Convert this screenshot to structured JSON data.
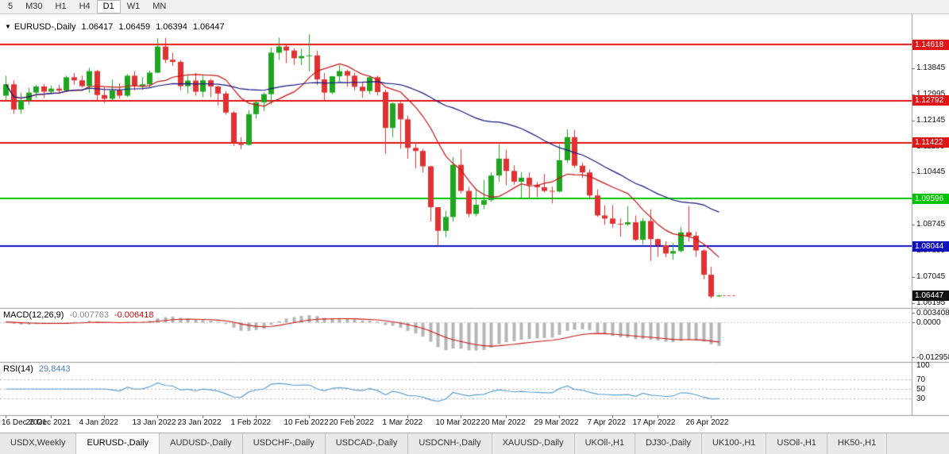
{
  "toolbar": {
    "timeframes": [
      "5",
      "M30",
      "H1",
      "H4",
      "D1",
      "W1",
      "MN"
    ],
    "active": "D1"
  },
  "chart_header": {
    "collapse_icon": "▼",
    "title": "EURUSD-,Daily",
    "open": "1.06417",
    "high": "1.06459",
    "low": "1.06394",
    "close": "1.06447"
  },
  "colors": {
    "bull": "#1fa51f",
    "bear": "#e03232",
    "ma_fast": "#c81414",
    "ma_slow": "#161680",
    "hist": "#b5b5b5",
    "macd_signal": "#c81414",
    "rsi_line": "#5f9fd0",
    "separator": "#9c9c9c",
    "last_dash": "#e03232"
  },
  "chart_data": {
    "type": "candlestick",
    "symbol": "EURUSD-",
    "timeframe": "Daily",
    "price_range": {
      "min": 1.0609,
      "max": 1.1529
    },
    "candles": [
      [
        1.1295,
        1.136,
        1.128,
        1.1332
      ],
      [
        1.1332,
        1.1345,
        1.1236,
        1.125
      ],
      [
        1.125,
        1.1305,
        1.1235,
        1.128
      ],
      [
        1.128,
        1.132,
        1.1265,
        1.1305
      ],
      [
        1.1305,
        1.133,
        1.1288,
        1.1325
      ],
      [
        1.1325,
        1.1333,
        1.1287,
        1.1308
      ],
      [
        1.1308,
        1.1328,
        1.13,
        1.1318
      ],
      [
        1.1318,
        1.1331,
        1.1305,
        1.1312
      ],
      [
        1.1312,
        1.136,
        1.131,
        1.1355
      ],
      [
        1.1355,
        1.1369,
        1.133,
        1.1345
      ],
      [
        1.1345,
        1.136,
        1.1321,
        1.1326
      ],
      [
        1.1326,
        1.1386,
        1.1304,
        1.1375
      ],
      [
        1.1375,
        1.1379,
        1.1279,
        1.1297
      ],
      [
        1.1297,
        1.1323,
        1.1272,
        1.1285
      ],
      [
        1.1285,
        1.1347,
        1.128,
        1.1312
      ],
      [
        1.1312,
        1.1335,
        1.1285,
        1.1295
      ],
      [
        1.1295,
        1.1365,
        1.129,
        1.136
      ],
      [
        1.136,
        1.1375,
        1.1313,
        1.1327
      ],
      [
        1.1327,
        1.1355,
        1.1314,
        1.1332
      ],
      [
        1.1332,
        1.1377,
        1.132,
        1.137
      ],
      [
        1.137,
        1.1482,
        1.1368,
        1.1455
      ],
      [
        1.1455,
        1.1483,
        1.1401,
        1.1412
      ],
      [
        1.1412,
        1.1435,
        1.1392,
        1.1405
      ],
      [
        1.1405,
        1.1411,
        1.1313,
        1.1326
      ],
      [
        1.1326,
        1.136,
        1.1302,
        1.1344
      ],
      [
        1.1344,
        1.1369,
        1.1295,
        1.1308
      ],
      [
        1.1308,
        1.136,
        1.129,
        1.1345
      ],
      [
        1.1345,
        1.1349,
        1.129,
        1.1325
      ],
      [
        1.1325,
        1.1327,
        1.1263,
        1.1302
      ],
      [
        1.1302,
        1.131,
        1.1233,
        1.124
      ],
      [
        1.124,
        1.1245,
        1.1131,
        1.1144
      ],
      [
        1.1144,
        1.116,
        1.1121,
        1.1135
      ],
      [
        1.1135,
        1.1248,
        1.1133,
        1.1235
      ],
      [
        1.1235,
        1.1279,
        1.122,
        1.1273
      ],
      [
        1.1273,
        1.1305,
        1.1245,
        1.13
      ],
      [
        1.13,
        1.1452,
        1.1267,
        1.1435
      ],
      [
        1.1435,
        1.1484,
        1.1411,
        1.1455
      ],
      [
        1.1455,
        1.146,
        1.1401,
        1.1442
      ],
      [
        1.1442,
        1.1449,
        1.1396,
        1.1417
      ],
      [
        1.1417,
        1.1448,
        1.1395,
        1.1424
      ],
      [
        1.1424,
        1.1495,
        1.1375,
        1.1426
      ],
      [
        1.1426,
        1.1442,
        1.133,
        1.1348
      ],
      [
        1.1348,
        1.1369,
        1.128,
        1.1305
      ],
      [
        1.1305,
        1.1359,
        1.13,
        1.1358
      ],
      [
        1.1358,
        1.1395,
        1.134,
        1.1375
      ],
      [
        1.1375,
        1.138,
        1.1324,
        1.136
      ],
      [
        1.136,
        1.1369,
        1.1312,
        1.1324
      ],
      [
        1.1324,
        1.134,
        1.1288,
        1.131
      ],
      [
        1.131,
        1.136,
        1.13,
        1.1355
      ],
      [
        1.1355,
        1.136,
        1.1295,
        1.1307
      ],
      [
        1.1307,
        1.1315,
        1.1106,
        1.119
      ],
      [
        1.119,
        1.1273,
        1.116,
        1.127
      ],
      [
        1.127,
        1.1275,
        1.1122,
        1.1218
      ],
      [
        1.1218,
        1.123,
        1.109,
        1.1125
      ],
      [
        1.1125,
        1.1143,
        1.1058,
        1.1115
      ],
      [
        1.1115,
        1.1121,
        1.1045,
        1.1065
      ],
      [
        1.1065,
        1.1067,
        1.0885,
        1.0932
      ],
      [
        1.0932,
        1.0932,
        1.0806,
        1.0855
      ],
      [
        1.0855,
        1.092,
        1.0834,
        1.09
      ],
      [
        1.09,
        1.1095,
        1.0885,
        1.107
      ],
      [
        1.107,
        1.1121,
        1.0977,
        1.0985
      ],
      [
        1.0985,
        1.0998,
        1.09,
        1.091
      ],
      [
        1.091,
        1.0992,
        1.0902,
        1.094
      ],
      [
        1.094,
        1.102,
        1.0925,
        1.0955
      ],
      [
        1.0955,
        1.1045,
        1.095,
        1.1035
      ],
      [
        1.1035,
        1.1137,
        1.1015,
        1.109
      ],
      [
        1.109,
        1.1119,
        1.1003,
        1.105
      ],
      [
        1.105,
        1.1069,
        1.1005,
        1.1015
      ],
      [
        1.1015,
        1.1046,
        1.096,
        1.1028
      ],
      [
        1.1028,
        1.1045,
        1.0963,
        1.1005
      ],
      [
        1.1005,
        1.1014,
        1.0965,
        1.0997
      ],
      [
        1.0997,
        1.104,
        1.098,
        1.0985
      ],
      [
        1.0985,
        1.0999,
        1.0944,
        1.0983
      ],
      [
        1.0983,
        1.1137,
        1.098,
        1.1085
      ],
      [
        1.1085,
        1.1185,
        1.1075,
        1.116
      ],
      [
        1.116,
        1.1184,
        1.106,
        1.1067
      ],
      [
        1.1067,
        1.1077,
        1.1027,
        1.1045
      ],
      [
        1.1045,
        1.1055,
        1.096,
        1.097
      ],
      [
        1.097,
        1.099,
        1.09,
        1.0905
      ],
      [
        1.0905,
        1.0938,
        1.0874,
        1.0895
      ],
      [
        1.0895,
        1.0939,
        1.0865,
        1.0878
      ],
      [
        1.0878,
        1.0895,
        1.0836,
        1.0876
      ],
      [
        1.0876,
        1.0935,
        1.0871,
        1.0883
      ],
      [
        1.0883,
        1.0905,
        1.0821,
        1.0826
      ],
      [
        1.0826,
        1.0896,
        1.081,
        1.0887
      ],
      [
        1.0887,
        1.0925,
        1.0757,
        1.0828
      ],
      [
        1.0828,
        1.083,
        1.077,
        1.0808
      ],
      [
        1.0808,
        1.0821,
        1.0769,
        1.0781
      ],
      [
        1.0781,
        1.0815,
        1.0761,
        1.0789
      ],
      [
        1.0789,
        1.0867,
        1.0785,
        1.085
      ],
      [
        1.085,
        1.0936,
        1.082,
        1.0839
      ],
      [
        1.0839,
        1.0852,
        1.077,
        1.0791
      ],
      [
        1.0791,
        1.0795,
        1.0697,
        1.0712
      ],
      [
        1.0712,
        1.0738,
        1.0635,
        1.0641
      ],
      [
        1.06417,
        1.06459,
        1.06394,
        1.06447
      ]
    ],
    "x_ticks": [
      {
        "label": "16 Dec 2021",
        "index": 0
      },
      {
        "label": "26 Dec 2021",
        "index": 6
      },
      {
        "label": "4 Jan 2022",
        "index": 13
      },
      {
        "label": "13 Jan 2022",
        "index": 20
      },
      {
        "label": "23 Jan 2022",
        "index": 26
      },
      {
        "label": "1 Feb 2022",
        "index": 33
      },
      {
        "label": "10 Feb 2022",
        "index": 40
      },
      {
        "label": "20 Feb 2022",
        "index": 46
      },
      {
        "label": "1 Mar 2022",
        "index": 53
      },
      {
        "label": "10 Mar 2022",
        "index": 60
      },
      {
        "label": "20 Mar 2022",
        "index": 66
      },
      {
        "label": "29 Mar 2022",
        "index": 73
      },
      {
        "label": "7 Apr 2022",
        "index": 80
      },
      {
        "label": "17 Apr 2022",
        "index": 86
      },
      {
        "label": "26 Apr 2022",
        "index": 93
      }
    ],
    "price_axis_ticks": [
      "1.13845",
      "1.12995",
      "1.12145",
      "1.11295",
      "1.10445",
      "1.09595",
      "1.08745",
      "1.07895",
      "1.07045",
      "1.06195"
    ],
    "hlines": [
      {
        "price": 1.14618,
        "label": "1.14618",
        "color": "#e01515"
      },
      {
        "price": 1.12792,
        "label": "1.12792",
        "color": "#e01515"
      },
      {
        "price": 1.11422,
        "label": "1.11422",
        "color": "#e01515"
      },
      {
        "price": 1.09596,
        "label": "1.09596",
        "color": "#00c400"
      },
      {
        "price": 1.08044,
        "label": "1.08044",
        "color": "#0f0fc0"
      }
    ],
    "last_price": {
      "value": 1.06447,
      "label": "1.06447",
      "color": "#101010"
    },
    "moving_averages": [
      {
        "period": 10,
        "color": "#c81414"
      },
      {
        "period": 34,
        "color": "#161680"
      }
    ],
    "indicators": {
      "macd": {
        "label": "MACD(12,26,9)",
        "fast": 12,
        "slow": 26,
        "signal": 9,
        "value": "-0.007763",
        "signal_value": "-0.006418",
        "scale_labels": [
          "0.003408",
          "0.0000",
          "-0.012958"
        ],
        "scale_max": 0.004,
        "scale_min": -0.0136
      },
      "rsi": {
        "label": "RSI(14)",
        "period": 14,
        "value": "29.8443",
        "scale_labels": [
          "100",
          "70",
          "50",
          "30"
        ],
        "levels": [
          70,
          50,
          30
        ]
      }
    }
  },
  "tabs": [
    {
      "label": "USDX,Weekly"
    },
    {
      "label": "EURUSD-,Daily",
      "active": true
    },
    {
      "label": "AUDUSD-,Daily"
    },
    {
      "label": "USDCHF-,Daily"
    },
    {
      "label": "USDCAD-,Daily"
    },
    {
      "label": "USDCNH-,Daily"
    },
    {
      "label": "XAUUSD-,Daily"
    },
    {
      "label": "UKOil-,H1"
    },
    {
      "label": "DJ30-,Daily"
    },
    {
      "label": "UK100-,H1"
    },
    {
      "label": "USOil-,H1"
    },
    {
      "label": "HK50-,H1"
    }
  ]
}
